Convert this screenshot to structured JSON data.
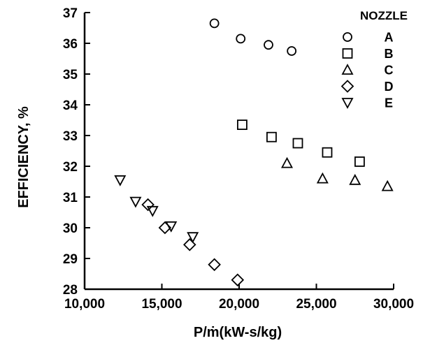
{
  "chart_data": {
    "type": "scatter",
    "title": "",
    "xlabel": "P/ṁ(kW-s/kg)",
    "ylabel": "EFFICIENCY, %",
    "xlim": [
      10000,
      30000
    ],
    "ylim": [
      28,
      37
    ],
    "xticks": [
      "10,000",
      "15,000",
      "20,000",
      "25,000",
      "30,000"
    ],
    "yticks": [
      "28",
      "29",
      "30",
      "31",
      "32",
      "33",
      "34",
      "35",
      "36",
      "37"
    ],
    "grid": false,
    "legend_title": "NOZZLE",
    "legend_position": "top-right",
    "series": [
      {
        "name": "A",
        "marker": "circle",
        "points": [
          [
            18400,
            36.65
          ],
          [
            20100,
            36.15
          ],
          [
            21900,
            35.95
          ],
          [
            23400,
            35.75
          ]
        ]
      },
      {
        "name": "B",
        "marker": "square",
        "points": [
          [
            20200,
            33.35
          ],
          [
            22100,
            32.95
          ],
          [
            23800,
            32.75
          ],
          [
            25700,
            32.45
          ],
          [
            27800,
            32.15
          ]
        ]
      },
      {
        "name": "C",
        "marker": "triangle-up",
        "points": [
          [
            23100,
            32.1
          ],
          [
            25400,
            31.6
          ],
          [
            27500,
            31.55
          ],
          [
            29600,
            31.35
          ]
        ]
      },
      {
        "name": "D",
        "marker": "diamond",
        "points": [
          [
            14100,
            30.75
          ],
          [
            15200,
            30.0
          ],
          [
            16800,
            29.45
          ],
          [
            18400,
            28.8
          ],
          [
            19900,
            28.3
          ]
        ]
      },
      {
        "name": "E",
        "marker": "triangle-down",
        "points": [
          [
            12300,
            31.55
          ],
          [
            13300,
            30.85
          ],
          [
            14400,
            30.55
          ],
          [
            15600,
            30.05
          ],
          [
            17000,
            29.7
          ]
        ]
      }
    ]
  }
}
